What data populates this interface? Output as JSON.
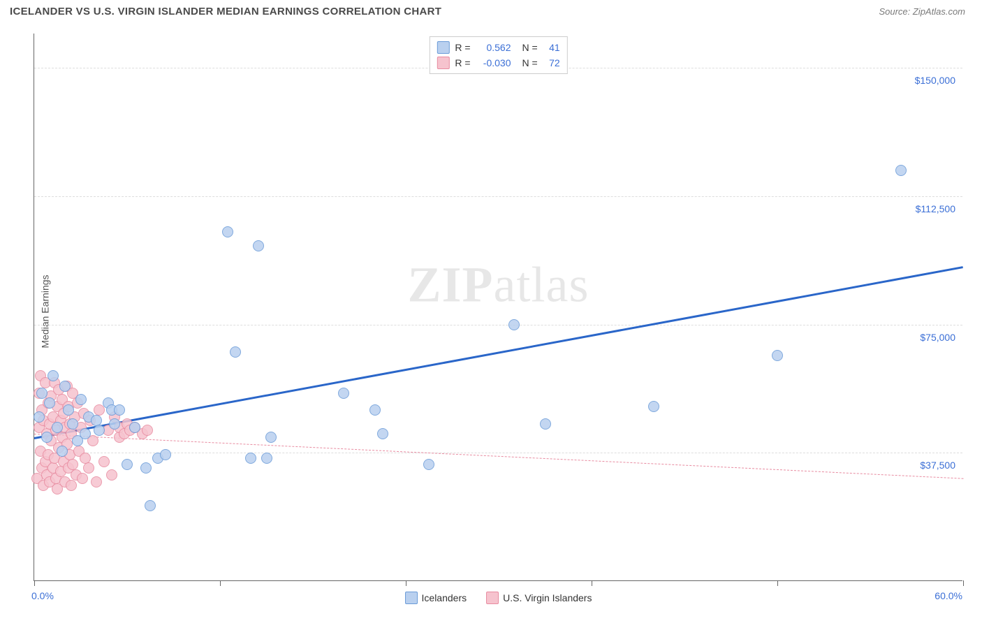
{
  "header": {
    "title": "ICELANDER VS U.S. VIRGIN ISLANDER MEDIAN EARNINGS CORRELATION CHART",
    "source": "Source: ZipAtlas.com"
  },
  "chart": {
    "type": "scatter",
    "y_axis_label": "Median Earnings",
    "x_range": {
      "min": 0.0,
      "max": 60.0,
      "label_min": "0.0%",
      "label_max": "60.0%"
    },
    "y_range": {
      "min": 0,
      "max": 160000
    },
    "y_gridlines": [
      {
        "value": 37500,
        "label": "$37,500"
      },
      {
        "value": 75000,
        "label": "$75,000"
      },
      {
        "value": 112500,
        "label": "$112,500"
      },
      {
        "value": 150000,
        "label": "$150,000"
      }
    ],
    "x_ticks": [
      0,
      12,
      24,
      36,
      48,
      60
    ],
    "grid_color": "#dddddd",
    "background": "#ffffff",
    "watermark": {
      "prefix": "ZIP",
      "suffix": "atlas"
    },
    "series": [
      {
        "name": "Icelanders",
        "color_fill": "#b9d0ef",
        "color_stroke": "#6a9bd8",
        "marker_radius": 8,
        "r_value": "0.562",
        "n_value": "41",
        "trend": {
          "x1": 0,
          "y1": 42000,
          "x2": 60,
          "y2": 92000,
          "color": "#2a66c9",
          "width": 3,
          "dash": "solid"
        },
        "points": [
          {
            "x": 0.3,
            "y": 48000
          },
          {
            "x": 0.5,
            "y": 55000
          },
          {
            "x": 0.8,
            "y": 42000
          },
          {
            "x": 1.0,
            "y": 52000
          },
          {
            "x": 1.2,
            "y": 60000
          },
          {
            "x": 1.5,
            "y": 45000
          },
          {
            "x": 1.8,
            "y": 38000
          },
          {
            "x": 2.0,
            "y": 57000
          },
          {
            "x": 2.2,
            "y": 50000
          },
          {
            "x": 2.5,
            "y": 46000
          },
          {
            "x": 2.8,
            "y": 41000
          },
          {
            "x": 3.0,
            "y": 53000
          },
          {
            "x": 3.3,
            "y": 43000
          },
          {
            "x": 3.5,
            "y": 48000
          },
          {
            "x": 4.0,
            "y": 47000
          },
          {
            "x": 4.2,
            "y": 44000
          },
          {
            "x": 4.8,
            "y": 52000
          },
          {
            "x": 5.0,
            "y": 50000
          },
          {
            "x": 5.5,
            "y": 50000
          },
          {
            "x": 6.0,
            "y": 34000
          },
          {
            "x": 6.5,
            "y": 45000
          },
          {
            "x": 7.5,
            "y": 22000
          },
          {
            "x": 8.0,
            "y": 36000
          },
          {
            "x": 8.5,
            "y": 37000
          },
          {
            "x": 12.5,
            "y": 102000
          },
          {
            "x": 13.0,
            "y": 67000
          },
          {
            "x": 14.0,
            "y": 36000
          },
          {
            "x": 14.5,
            "y": 98000
          },
          {
            "x": 15.0,
            "y": 36000
          },
          {
            "x": 15.3,
            "y": 42000
          },
          {
            "x": 20.0,
            "y": 55000
          },
          {
            "x": 22.0,
            "y": 50000
          },
          {
            "x": 22.5,
            "y": 43000
          },
          {
            "x": 25.5,
            "y": 34000
          },
          {
            "x": 31.0,
            "y": 75000
          },
          {
            "x": 33.0,
            "y": 46000
          },
          {
            "x": 40.0,
            "y": 51000
          },
          {
            "x": 48.0,
            "y": 66000
          },
          {
            "x": 56.0,
            "y": 120000
          },
          {
            "x": 7.2,
            "y": 33000
          },
          {
            "x": 5.2,
            "y": 46000
          }
        ]
      },
      {
        "name": "U.S. Virgin Islanders",
        "color_fill": "#f6c3ce",
        "color_stroke": "#e88ba0",
        "marker_radius": 8,
        "r_value": "-0.030",
        "n_value": "72",
        "trend": {
          "x1": 0,
          "y1": 43000,
          "x2": 60,
          "y2": 30000,
          "color": "#e88ba0",
          "width": 1,
          "dash": "dashed"
        },
        "points": [
          {
            "x": 0.2,
            "y": 30000
          },
          {
            "x": 0.3,
            "y": 55000
          },
          {
            "x": 0.3,
            "y": 45000
          },
          {
            "x": 0.4,
            "y": 38000
          },
          {
            "x": 0.4,
            "y": 60000
          },
          {
            "x": 0.5,
            "y": 33000
          },
          {
            "x": 0.5,
            "y": 50000
          },
          {
            "x": 0.6,
            "y": 28000
          },
          {
            "x": 0.6,
            "y": 47000
          },
          {
            "x": 0.7,
            "y": 58000
          },
          {
            "x": 0.7,
            "y": 35000
          },
          {
            "x": 0.8,
            "y": 31000
          },
          {
            "x": 0.8,
            "y": 43000
          },
          {
            "x": 0.9,
            "y": 52000
          },
          {
            "x": 0.9,
            "y": 37000
          },
          {
            "x": 1.0,
            "y": 29000
          },
          {
            "x": 1.0,
            "y": 46000
          },
          {
            "x": 1.1,
            "y": 41000
          },
          {
            "x": 1.1,
            "y": 54000
          },
          {
            "x": 1.2,
            "y": 33000
          },
          {
            "x": 1.2,
            "y": 48000
          },
          {
            "x": 1.3,
            "y": 58000
          },
          {
            "x": 1.3,
            "y": 36000
          },
          {
            "x": 1.4,
            "y": 30000
          },
          {
            "x": 1.4,
            "y": 44000
          },
          {
            "x": 1.5,
            "y": 51000
          },
          {
            "x": 1.5,
            "y": 27000
          },
          {
            "x": 1.6,
            "y": 39000
          },
          {
            "x": 1.6,
            "y": 56000
          },
          {
            "x": 1.7,
            "y": 32000
          },
          {
            "x": 1.7,
            "y": 47000
          },
          {
            "x": 1.8,
            "y": 42000
          },
          {
            "x": 1.8,
            "y": 53000
          },
          {
            "x": 1.9,
            "y": 35000
          },
          {
            "x": 1.9,
            "y": 49000
          },
          {
            "x": 2.0,
            "y": 29000
          },
          {
            "x": 2.0,
            "y": 45000
          },
          {
            "x": 2.1,
            "y": 40000
          },
          {
            "x": 2.1,
            "y": 57000
          },
          {
            "x": 2.2,
            "y": 33000
          },
          {
            "x": 2.2,
            "y": 51000
          },
          {
            "x": 2.3,
            "y": 37000
          },
          {
            "x": 2.3,
            "y": 46000
          },
          {
            "x": 2.4,
            "y": 28000
          },
          {
            "x": 2.4,
            "y": 43000
          },
          {
            "x": 2.5,
            "y": 55000
          },
          {
            "x": 2.5,
            "y": 34000
          },
          {
            "x": 2.6,
            "y": 48000
          },
          {
            "x": 2.7,
            "y": 31000
          },
          {
            "x": 2.8,
            "y": 52000
          },
          {
            "x": 2.9,
            "y": 38000
          },
          {
            "x": 3.0,
            "y": 45000
          },
          {
            "x": 3.1,
            "y": 30000
          },
          {
            "x": 3.2,
            "y": 49000
          },
          {
            "x": 3.3,
            "y": 36000
          },
          {
            "x": 3.5,
            "y": 33000
          },
          {
            "x": 3.6,
            "y": 47000
          },
          {
            "x": 3.8,
            "y": 41000
          },
          {
            "x": 4.0,
            "y": 29000
          },
          {
            "x": 4.2,
            "y": 50000
          },
          {
            "x": 4.5,
            "y": 35000
          },
          {
            "x": 4.8,
            "y": 44000
          },
          {
            "x": 5.0,
            "y": 31000
          },
          {
            "x": 5.2,
            "y": 48000
          },
          {
            "x": 5.5,
            "y": 42000
          },
          {
            "x": 5.5,
            "y": 45000
          },
          {
            "x": 5.8,
            "y": 43000
          },
          {
            "x": 6.0,
            "y": 46000
          },
          {
            "x": 6.2,
            "y": 44000
          },
          {
            "x": 6.5,
            "y": 45000
          },
          {
            "x": 7.0,
            "y": 43000
          },
          {
            "x": 7.3,
            "y": 44000
          }
        ]
      }
    ]
  }
}
